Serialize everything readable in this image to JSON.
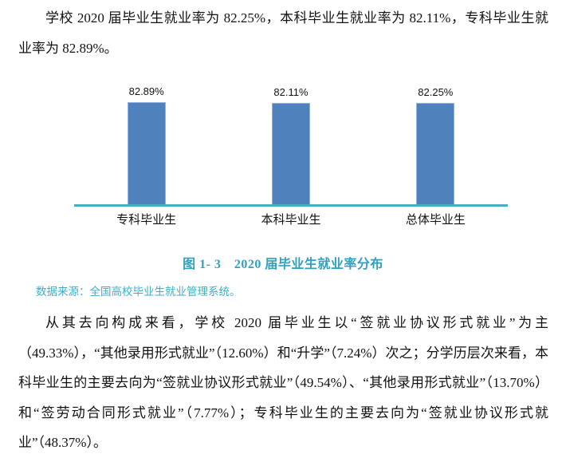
{
  "page": {
    "paragraph1": "学校 2020 届毕业生就业率为 82.25%，本科毕业生就业率为 82.11%，专科毕业生就业率为 82.89%。",
    "caption": "图 1- 3　2020 届毕业生就业率分布",
    "source": "数据来源：全国高校毕业生就业管理系统。",
    "paragraph2": "从其去向构成来看，学校 2020 届毕业生以“签就业协议形式就业”为主（49.33%），“其他录用形式就业”（12.60%）和“升学”（7.24%）次之；分学历层次来看，本科毕业生的主要去向为“签就业协议形式就业”（49.54%）、“其他录用形式就业”（13.70%）和“签劳动合同形式就业”（7.77%）；专科毕业生的主要去向为“签就业协议形式就业”（48.37%）。"
  },
  "chart_data": {
    "type": "bar",
    "categories": [
      "专科毕业生",
      "本科毕业生",
      "总体毕业生"
    ],
    "values": [
      82.89,
      82.11,
      82.25
    ],
    "value_labels": [
      "82.89%",
      "82.11%",
      "82.25%"
    ],
    "title": "图 1- 3　2020 届毕业生就业率分布",
    "xlabel": "",
    "ylabel": "",
    "ylim": [
      0,
      100
    ],
    "grid": false,
    "legend": false,
    "bar_color": "#4f81bd",
    "bar_border_color": "#8eb4e3",
    "axis_line_color": "#4bacc6"
  }
}
